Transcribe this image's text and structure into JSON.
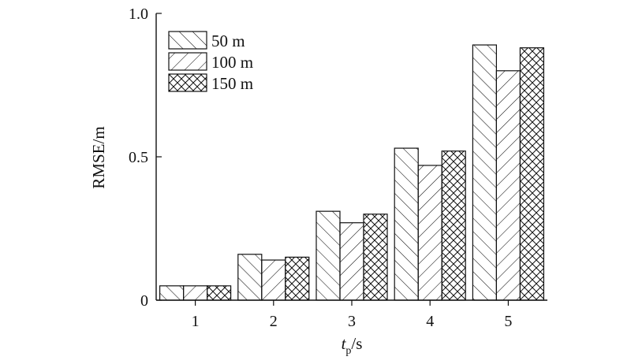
{
  "chart_data": {
    "type": "bar",
    "categories": [
      "1",
      "2",
      "3",
      "4",
      "5"
    ],
    "series": [
      {
        "name": "50 m",
        "pattern": "backslash",
        "values": [
          0.05,
          0.16,
          0.31,
          0.53,
          0.89
        ]
      },
      {
        "name": "100 m",
        "pattern": "slash",
        "values": [
          0.05,
          0.14,
          0.27,
          0.47,
          0.8
        ]
      },
      {
        "name": "150 m",
        "pattern": "cross",
        "values": [
          0.05,
          0.15,
          0.3,
          0.52,
          0.88
        ]
      }
    ],
    "ylabel": "RMSE/m",
    "xlabel": {
      "main": "t",
      "sub": "p",
      "rest": "/s"
    },
    "ylim": [
      0,
      1.0
    ],
    "yticks": [
      0,
      0.5,
      1.0
    ],
    "ytick_labels": [
      "0",
      "0.5",
      "1.0"
    ],
    "grid": false,
    "legend_position": "top-left",
    "colors": {
      "stroke": "#111111",
      "background": "#ffffff"
    }
  }
}
